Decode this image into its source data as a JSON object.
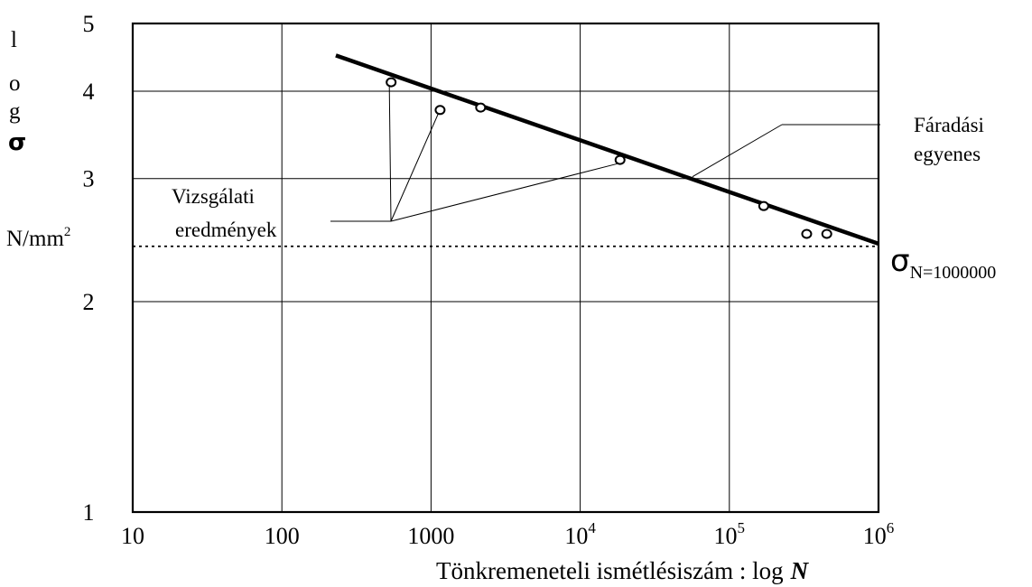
{
  "chart_data": {
    "type": "line",
    "title": "",
    "xlabel": "Tönkremeneteli ismétlésiszám :  log",
    "xlabel_var": "N",
    "ylabel_letters": [
      "l",
      "o",
      "g",
      "σ"
    ],
    "yunit": "N/mm",
    "yunit_sup": "2",
    "x_scale": "log",
    "y_scale": "log",
    "xlim": [
      10,
      1000000
    ],
    "ylim": [
      1,
      5
    ],
    "grid": true,
    "x_ticks": [
      {
        "value": 10,
        "label": "10",
        "sup": ""
      },
      {
        "value": 100,
        "label": "100",
        "sup": ""
      },
      {
        "value": 1000,
        "label": "1000",
        "sup": ""
      },
      {
        "value": 10000,
        "label": "10",
        "sup": "4"
      },
      {
        "value": 100000,
        "label": "10",
        "sup": "5"
      },
      {
        "value": 1000000,
        "label": "10",
        "sup": "6"
      }
    ],
    "y_ticks": [
      {
        "value": 1,
        "label": "1"
      },
      {
        "value": 2,
        "label": "2"
      },
      {
        "value": 3,
        "label": "3"
      },
      {
        "value": 4,
        "label": "4"
      },
      {
        "value": 5,
        "label": "5"
      }
    ],
    "series": [
      {
        "name": "Fáradási egyenes",
        "style": "line",
        "x": [
          230,
          1000000
        ],
        "y": [
          4.5,
          2.42
        ]
      },
      {
        "name": "Vizsgálati eredmények",
        "style": "scatter",
        "x": [
          540,
          1150,
          2150,
          18500,
          170000,
          330000,
          450000
        ],
        "y": [
          4.12,
          3.76,
          3.79,
          3.19,
          2.74,
          2.5,
          2.5
        ]
      }
    ],
    "endurance_limit": {
      "y": 2.4,
      "label": "σ",
      "sub": "N=1000000"
    },
    "annotations": {
      "fatigue_line": [
        "Fáradási",
        "egyenes"
      ],
      "test_results": [
        "Vizsgálati",
        "eredmények"
      ]
    },
    "colors": {
      "ink": "#000000",
      "background": "#ffffff"
    }
  }
}
